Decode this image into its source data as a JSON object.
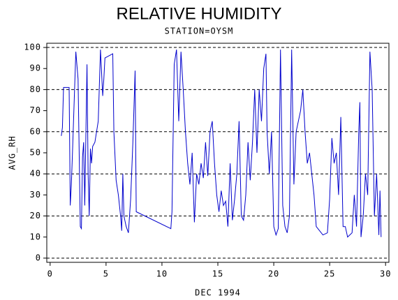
{
  "chart_data": {
    "type": "line",
    "title": "RELATIVE HUMIDITY",
    "subtitle": "STATION=OYSM",
    "x_label": "DEC 1994",
    "y_label": "AVG_RH",
    "xlim": [
      -0.3,
      30.3
    ],
    "ylim": [
      -2,
      102
    ],
    "xticks": [
      0,
      5,
      10,
      15,
      20,
      25,
      30
    ],
    "yticks": [
      0,
      10,
      20,
      30,
      40,
      50,
      60,
      70,
      80,
      90,
      100
    ],
    "grid_lines": [
      0,
      20,
      40,
      60,
      80,
      100
    ],
    "x": [
      1.0,
      1.1,
      1.2,
      1.7,
      1.8,
      1.9,
      2.0,
      2.3,
      2.5,
      2.7,
      2.8,
      2.9,
      3.0,
      3.1,
      3.3,
      3.4,
      3.5,
      3.6,
      3.7,
      3.8,
      4.0,
      4.3,
      4.5,
      4.7,
      4.8,
      4.9,
      5.6,
      5.7,
      5.9,
      6.1,
      6.3,
      6.4,
      6.5,
      6.6,
      6.8,
      7.0,
      7.2,
      7.4,
      7.6,
      7.7,
      10.8,
      10.9,
      11.1,
      11.3,
      11.5,
      11.7,
      11.9,
      12.1,
      12.3,
      12.5,
      12.7,
      12.9,
      13.1,
      13.3,
      13.5,
      13.7,
      13.9,
      14.1,
      14.3,
      14.5,
      14.7,
      14.9,
      15.1,
      15.3,
      15.5,
      15.7,
      15.9,
      16.1,
      16.3,
      16.5,
      16.7,
      16.9,
      17.1,
      17.3,
      17.5,
      17.7,
      17.9,
      18.1,
      18.3,
      18.5,
      18.7,
      18.9,
      19.1,
      19.3,
      19.4,
      19.6,
      19.8,
      20.0,
      20.2,
      20.4,
      20.6,
      20.8,
      21.0,
      21.2,
      21.4,
      21.6,
      21.8,
      22.0,
      22.2,
      22.4,
      22.6,
      22.8,
      23.0,
      23.2,
      23.4,
      23.6,
      23.8,
      24.4,
      24.8,
      25.0,
      25.2,
      25.4,
      25.6,
      25.8,
      26.0,
      26.2,
      26.4,
      26.6,
      26.8,
      27.0,
      27.2,
      27.4,
      27.6,
      27.7,
      27.8,
      28.0,
      28.2,
      28.4,
      28.6,
      28.8,
      29.0,
      29.2,
      29.4,
      29.5,
      29.6
    ],
    "series": [
      {
        "color": "#0000cc",
        "values": [
          58,
          62,
          81,
          81,
          25,
          35,
          50,
          98,
          85,
          15,
          14,
          48,
          55,
          25,
          92,
          40,
          20,
          52,
          45,
          53,
          55,
          65,
          99,
          77,
          85,
          95,
          97,
          60,
          37,
          30,
          20,
          13,
          40,
          20,
          15,
          12,
          28,
          55,
          89,
          22,
          14,
          22,
          92,
          99,
          65,
          98,
          80,
          60,
          45,
          35,
          50,
          17,
          40,
          35,
          45,
          38,
          55,
          39,
          60,
          65,
          45,
          30,
          22,
          32,
          25,
          27,
          15,
          45,
          18,
          28,
          40,
          65,
          20,
          18,
          30,
          55,
          37,
          55,
          80,
          50,
          80,
          65,
          90,
          97,
          60,
          40,
          60,
          15,
          11,
          14,
          99,
          25,
          15,
          12,
          20,
          99,
          35,
          60,
          65,
          70,
          80,
          60,
          45,
          50,
          40,
          30,
          15,
          11,
          12,
          28,
          57,
          45,
          50,
          30,
          67,
          15,
          15,
          10,
          11,
          12,
          30,
          15,
          60,
          74,
          10,
          20,
          40,
          30,
          98,
          80,
          20,
          40,
          11,
          32,
          10
        ]
      }
    ]
  }
}
